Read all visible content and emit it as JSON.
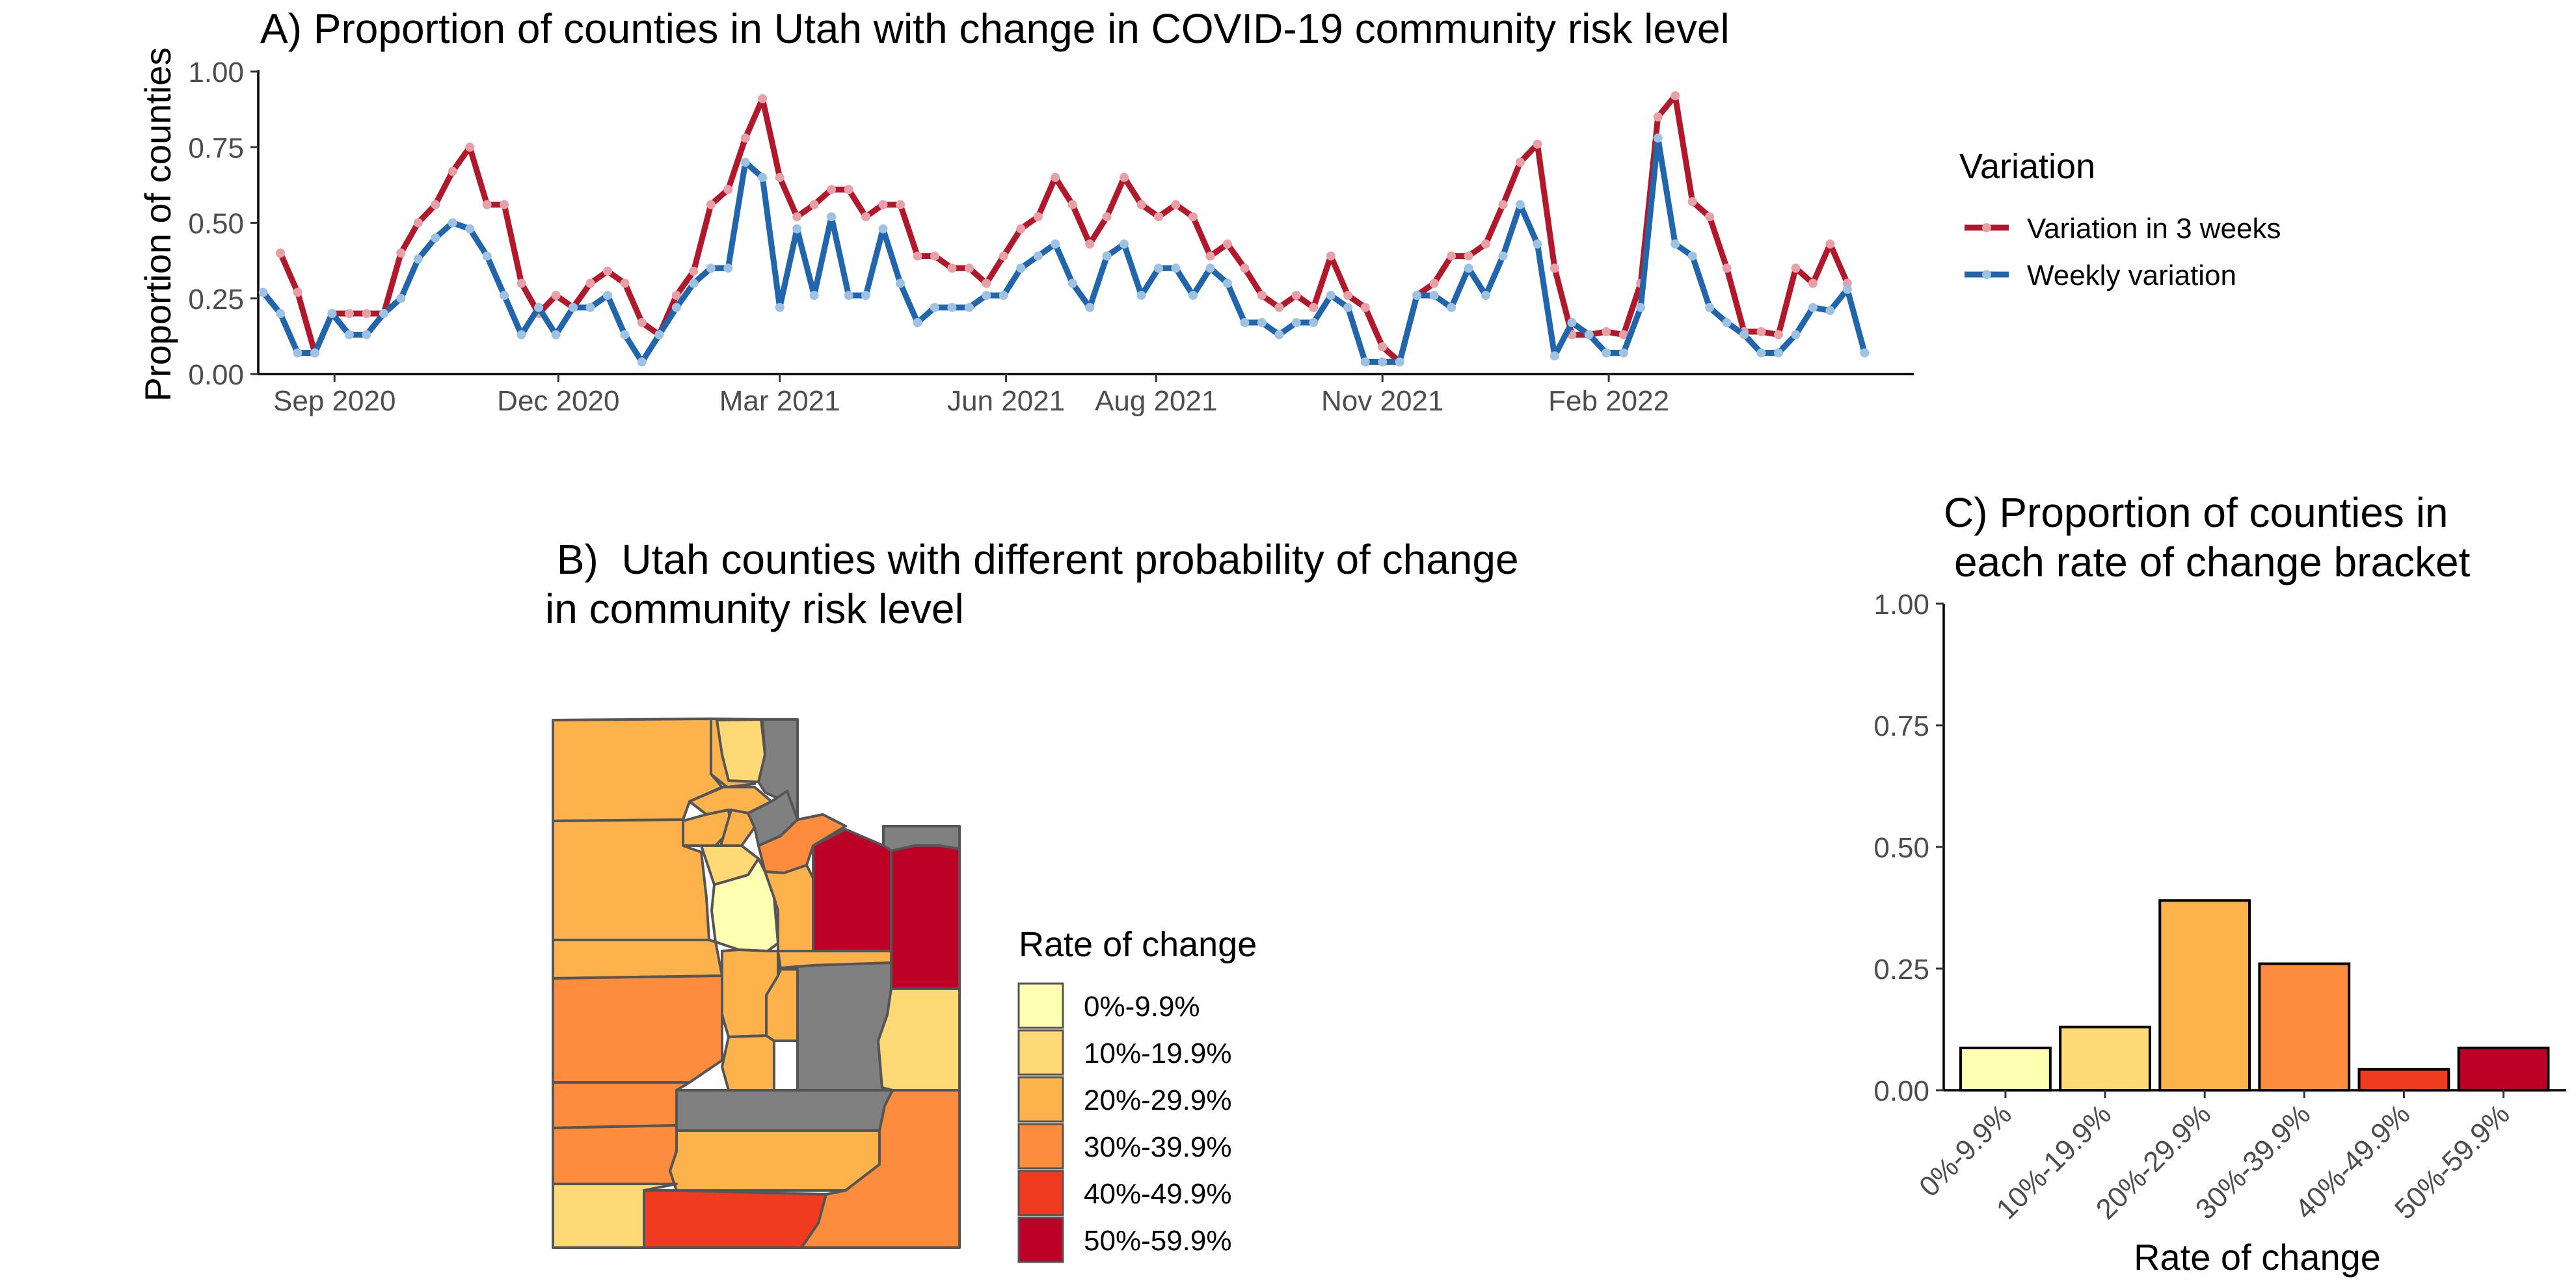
{
  "chart_data": [
    {
      "type": "line",
      "title": "A) Proportion of counties in Utah with change in COVID-19 community risk level",
      "xlabel": "",
      "ylabel": "Proportion of counties",
      "x_axis": "date",
      "xlim": [
        "2020-08-01",
        "2022-06-05"
      ],
      "ylim": [
        0,
        1
      ],
      "yticks": [
        "0.00",
        "0.25",
        "0.50",
        "0.75",
        "1.00"
      ],
      "xticks": [
        {
          "date": "2020-09-01",
          "label": "Sep 2020"
        },
        {
          "date": "2020-12-01",
          "label": "Dec 2020"
        },
        {
          "date": "2021-03-01",
          "label": "Mar 2021"
        },
        {
          "date": "2021-06-01",
          "label": "Jun 2021"
        },
        {
          "date": "2021-08-01",
          "label": "Aug 2021"
        },
        {
          "date": "2021-11-01",
          "label": "Nov 2021"
        },
        {
          "date": "2022-02-01",
          "label": "Feb 2022"
        }
      ],
      "grid": false,
      "legend": {
        "title": "Variation",
        "position": "right"
      },
      "series": [
        {
          "name": "Variation in 3 weeks",
          "color": "#b2182b",
          "points": [
            [
              "2020-08-10",
              0.4
            ],
            [
              "2020-08-17",
              0.27
            ],
            [
              "2020-08-24",
              0.07
            ],
            [
              "2020-08-31",
              0.2
            ],
            [
              "2020-09-07",
              0.2
            ],
            [
              "2020-09-14",
              0.2
            ],
            [
              "2020-09-21",
              0.2
            ],
            [
              "2020-09-28",
              0.4
            ],
            [
              "2020-10-05",
              0.5
            ],
            [
              "2020-10-12",
              0.56
            ],
            [
              "2020-10-19",
              0.67
            ],
            [
              "2020-10-26",
              0.75
            ],
            [
              "2020-11-02",
              0.56
            ],
            [
              "2020-11-09",
              0.56
            ],
            [
              "2020-11-16",
              0.3
            ],
            [
              "2020-11-23",
              0.2
            ],
            [
              "2020-11-30",
              0.26
            ],
            [
              "2020-12-07",
              0.22
            ],
            [
              "2020-12-14",
              0.3
            ],
            [
              "2020-12-21",
              0.34
            ],
            [
              "2020-12-28",
              0.3
            ],
            [
              "2021-01-04",
              0.17
            ],
            [
              "2021-01-11",
              0.13
            ],
            [
              "2021-01-18",
              0.26
            ],
            [
              "2021-01-25",
              0.34
            ],
            [
              "2021-02-01",
              0.56
            ],
            [
              "2021-02-08",
              0.61
            ],
            [
              "2021-02-15",
              0.78
            ],
            [
              "2021-02-22",
              0.91
            ],
            [
              "2021-03-01",
              0.65
            ],
            [
              "2021-03-08",
              0.52
            ],
            [
              "2021-03-15",
              0.56
            ],
            [
              "2021-03-22",
              0.61
            ],
            [
              "2021-03-29",
              0.61
            ],
            [
              "2021-04-05",
              0.52
            ],
            [
              "2021-04-12",
              0.56
            ],
            [
              "2021-04-19",
              0.56
            ],
            [
              "2021-04-26",
              0.39
            ],
            [
              "2021-05-03",
              0.39
            ],
            [
              "2021-05-10",
              0.35
            ],
            [
              "2021-05-17",
              0.35
            ],
            [
              "2021-05-24",
              0.3
            ],
            [
              "2021-05-31",
              0.39
            ],
            [
              "2021-06-07",
              0.48
            ],
            [
              "2021-06-14",
              0.52
            ],
            [
              "2021-06-21",
              0.65
            ],
            [
              "2021-06-28",
              0.56
            ],
            [
              "2021-07-05",
              0.43
            ],
            [
              "2021-07-12",
              0.52
            ],
            [
              "2021-07-19",
              0.65
            ],
            [
              "2021-07-26",
              0.56
            ],
            [
              "2021-08-02",
              0.52
            ],
            [
              "2021-08-09",
              0.56
            ],
            [
              "2021-08-16",
              0.52
            ],
            [
              "2021-08-23",
              0.39
            ],
            [
              "2021-08-30",
              0.43
            ],
            [
              "2021-09-06",
              0.35
            ],
            [
              "2021-09-13",
              0.26
            ],
            [
              "2021-09-20",
              0.22
            ],
            [
              "2021-09-27",
              0.26
            ],
            [
              "2021-10-04",
              0.22
            ],
            [
              "2021-10-11",
              0.39
            ],
            [
              "2021-10-18",
              0.26
            ],
            [
              "2021-10-25",
              0.22
            ],
            [
              "2021-11-01",
              0.09
            ],
            [
              "2021-11-08",
              0.04
            ],
            [
              "2021-11-15",
              0.26
            ],
            [
              "2021-11-22",
              0.3
            ],
            [
              "2021-11-29",
              0.39
            ],
            [
              "2021-12-06",
              0.39
            ],
            [
              "2021-12-13",
              0.43
            ],
            [
              "2021-12-20",
              0.56
            ],
            [
              "2021-12-27",
              0.7
            ],
            [
              "2022-01-03",
              0.76
            ],
            [
              "2022-01-10",
              0.35
            ],
            [
              "2022-01-17",
              0.13
            ],
            [
              "2022-01-24",
              0.13
            ],
            [
              "2022-01-31",
              0.14
            ],
            [
              "2022-02-07",
              0.13
            ],
            [
              "2022-02-14",
              0.3
            ],
            [
              "2022-02-21",
              0.85
            ],
            [
              "2022-02-28",
              0.92
            ],
            [
              "2022-03-07",
              0.57
            ],
            [
              "2022-03-14",
              0.52
            ],
            [
              "2022-03-21",
              0.35
            ],
            [
              "2022-03-28",
              0.14
            ],
            [
              "2022-04-04",
              0.14
            ],
            [
              "2022-04-11",
              0.13
            ],
            [
              "2022-04-18",
              0.35
            ],
            [
              "2022-04-25",
              0.3
            ],
            [
              "2022-05-02",
              0.43
            ],
            [
              "2022-05-09",
              0.3
            ]
          ]
        },
        {
          "name": "Weekly variation",
          "color": "#2166ac",
          "points": [
            [
              "2020-08-03",
              0.27
            ],
            [
              "2020-08-10",
              0.2
            ],
            [
              "2020-08-17",
              0.07
            ],
            [
              "2020-08-24",
              0.07
            ],
            [
              "2020-08-31",
              0.2
            ],
            [
              "2020-09-07",
              0.13
            ],
            [
              "2020-09-14",
              0.13
            ],
            [
              "2020-09-21",
              0.2
            ],
            [
              "2020-09-28",
              0.25
            ],
            [
              "2020-10-05",
              0.38
            ],
            [
              "2020-10-12",
              0.45
            ],
            [
              "2020-10-19",
              0.5
            ],
            [
              "2020-10-26",
              0.48
            ],
            [
              "2020-11-02",
              0.39
            ],
            [
              "2020-11-09",
              0.26
            ],
            [
              "2020-11-16",
              0.13
            ],
            [
              "2020-11-23",
              0.22
            ],
            [
              "2020-11-30",
              0.13
            ],
            [
              "2020-12-07",
              0.22
            ],
            [
              "2020-12-14",
              0.22
            ],
            [
              "2020-12-21",
              0.26
            ],
            [
              "2020-12-28",
              0.13
            ],
            [
              "2021-01-04",
              0.04
            ],
            [
              "2021-01-11",
              0.13
            ],
            [
              "2021-01-18",
              0.22
            ],
            [
              "2021-01-25",
              0.3
            ],
            [
              "2021-02-01",
              0.35
            ],
            [
              "2021-02-08",
              0.35
            ],
            [
              "2021-02-15",
              0.7
            ],
            [
              "2021-02-22",
              0.65
            ],
            [
              "2021-03-01",
              0.22
            ],
            [
              "2021-03-08",
              0.48
            ],
            [
              "2021-03-15",
              0.26
            ],
            [
              "2021-03-22",
              0.52
            ],
            [
              "2021-03-29",
              0.26
            ],
            [
              "2021-04-05",
              0.26
            ],
            [
              "2021-04-12",
              0.48
            ],
            [
              "2021-04-19",
              0.3
            ],
            [
              "2021-04-26",
              0.17
            ],
            [
              "2021-05-03",
              0.22
            ],
            [
              "2021-05-10",
              0.22
            ],
            [
              "2021-05-17",
              0.22
            ],
            [
              "2021-05-24",
              0.26
            ],
            [
              "2021-05-31",
              0.26
            ],
            [
              "2021-06-07",
              0.35
            ],
            [
              "2021-06-14",
              0.39
            ],
            [
              "2021-06-21",
              0.43
            ],
            [
              "2021-06-28",
              0.3
            ],
            [
              "2021-07-05",
              0.22
            ],
            [
              "2021-07-12",
              0.39
            ],
            [
              "2021-07-19",
              0.43
            ],
            [
              "2021-07-26",
              0.26
            ],
            [
              "2021-08-02",
              0.35
            ],
            [
              "2021-08-09",
              0.35
            ],
            [
              "2021-08-16",
              0.26
            ],
            [
              "2021-08-23",
              0.35
            ],
            [
              "2021-08-30",
              0.3
            ],
            [
              "2021-09-06",
              0.17
            ],
            [
              "2021-09-13",
              0.17
            ],
            [
              "2021-09-20",
              0.13
            ],
            [
              "2021-09-27",
              0.17
            ],
            [
              "2021-10-04",
              0.17
            ],
            [
              "2021-10-11",
              0.26
            ],
            [
              "2021-10-18",
              0.22
            ],
            [
              "2021-10-25",
              0.04
            ],
            [
              "2021-11-01",
              0.04
            ],
            [
              "2021-11-08",
              0.04
            ],
            [
              "2021-11-15",
              0.26
            ],
            [
              "2021-11-22",
              0.26
            ],
            [
              "2021-11-29",
              0.22
            ],
            [
              "2021-12-06",
              0.35
            ],
            [
              "2021-12-13",
              0.26
            ],
            [
              "2021-12-20",
              0.39
            ],
            [
              "2021-12-27",
              0.56
            ],
            [
              "2022-01-03",
              0.43
            ],
            [
              "2022-01-10",
              0.06
            ],
            [
              "2022-01-17",
              0.17
            ],
            [
              "2022-01-24",
              0.13
            ],
            [
              "2022-01-31",
              0.07
            ],
            [
              "2022-02-07",
              0.07
            ],
            [
              "2022-02-14",
              0.22
            ],
            [
              "2022-02-21",
              0.78
            ],
            [
              "2022-02-28",
              0.43
            ],
            [
              "2022-03-07",
              0.39
            ],
            [
              "2022-03-14",
              0.22
            ],
            [
              "2022-03-21",
              0.17
            ],
            [
              "2022-03-28",
              0.13
            ],
            [
              "2022-04-04",
              0.07
            ],
            [
              "2022-04-11",
              0.07
            ],
            [
              "2022-04-18",
              0.13
            ],
            [
              "2022-04-25",
              0.22
            ],
            [
              "2022-05-02",
              0.21
            ],
            [
              "2022-05-09",
              0.28
            ],
            [
              "2022-05-16",
              0.07
            ]
          ]
        }
      ]
    },
    {
      "type": "map",
      "title_lines": [
        " B)  Utah counties with different probability of change",
        "in community risk level"
      ],
      "legend": {
        "title": "Rate of change",
        "position": "right",
        "entries": [
          {
            "label": "0%-9.9%",
            "color": "#ffffb2"
          },
          {
            "label": "10%-19.9%",
            "color": "#fed976"
          },
          {
            "label": "20%-29.9%",
            "color": "#feb24c"
          },
          {
            "label": "30%-39.9%",
            "color": "#fd8d3c"
          },
          {
            "label": "40%-49.9%",
            "color": "#f03b20"
          },
          {
            "label": "50%-59.9%",
            "color": "#bd0026"
          }
        ]
      },
      "na_color": "#808080"
    },
    {
      "type": "bar",
      "title_lines": [
        "C) Proportion of counties in",
        "each rate of change bracket"
      ],
      "xlabel": "Rate of change",
      "ylabel": "",
      "ylim": [
        0,
        1
      ],
      "yticks": [
        "0.00",
        "0.25",
        "0.50",
        "0.75",
        "1.00"
      ],
      "grid": false,
      "categories": [
        "0%-9.9%",
        "10%-19.9%",
        "20%-29.9%",
        "30%-39.9%",
        "40%-49.9%",
        "50%-59.9%"
      ],
      "values": [
        0.087,
        0.13,
        0.39,
        0.26,
        0.043,
        0.087
      ],
      "colors": [
        "#ffffb2",
        "#fed976",
        "#feb24c",
        "#fd8d3c",
        "#f03b20",
        "#bd0026"
      ]
    }
  ]
}
